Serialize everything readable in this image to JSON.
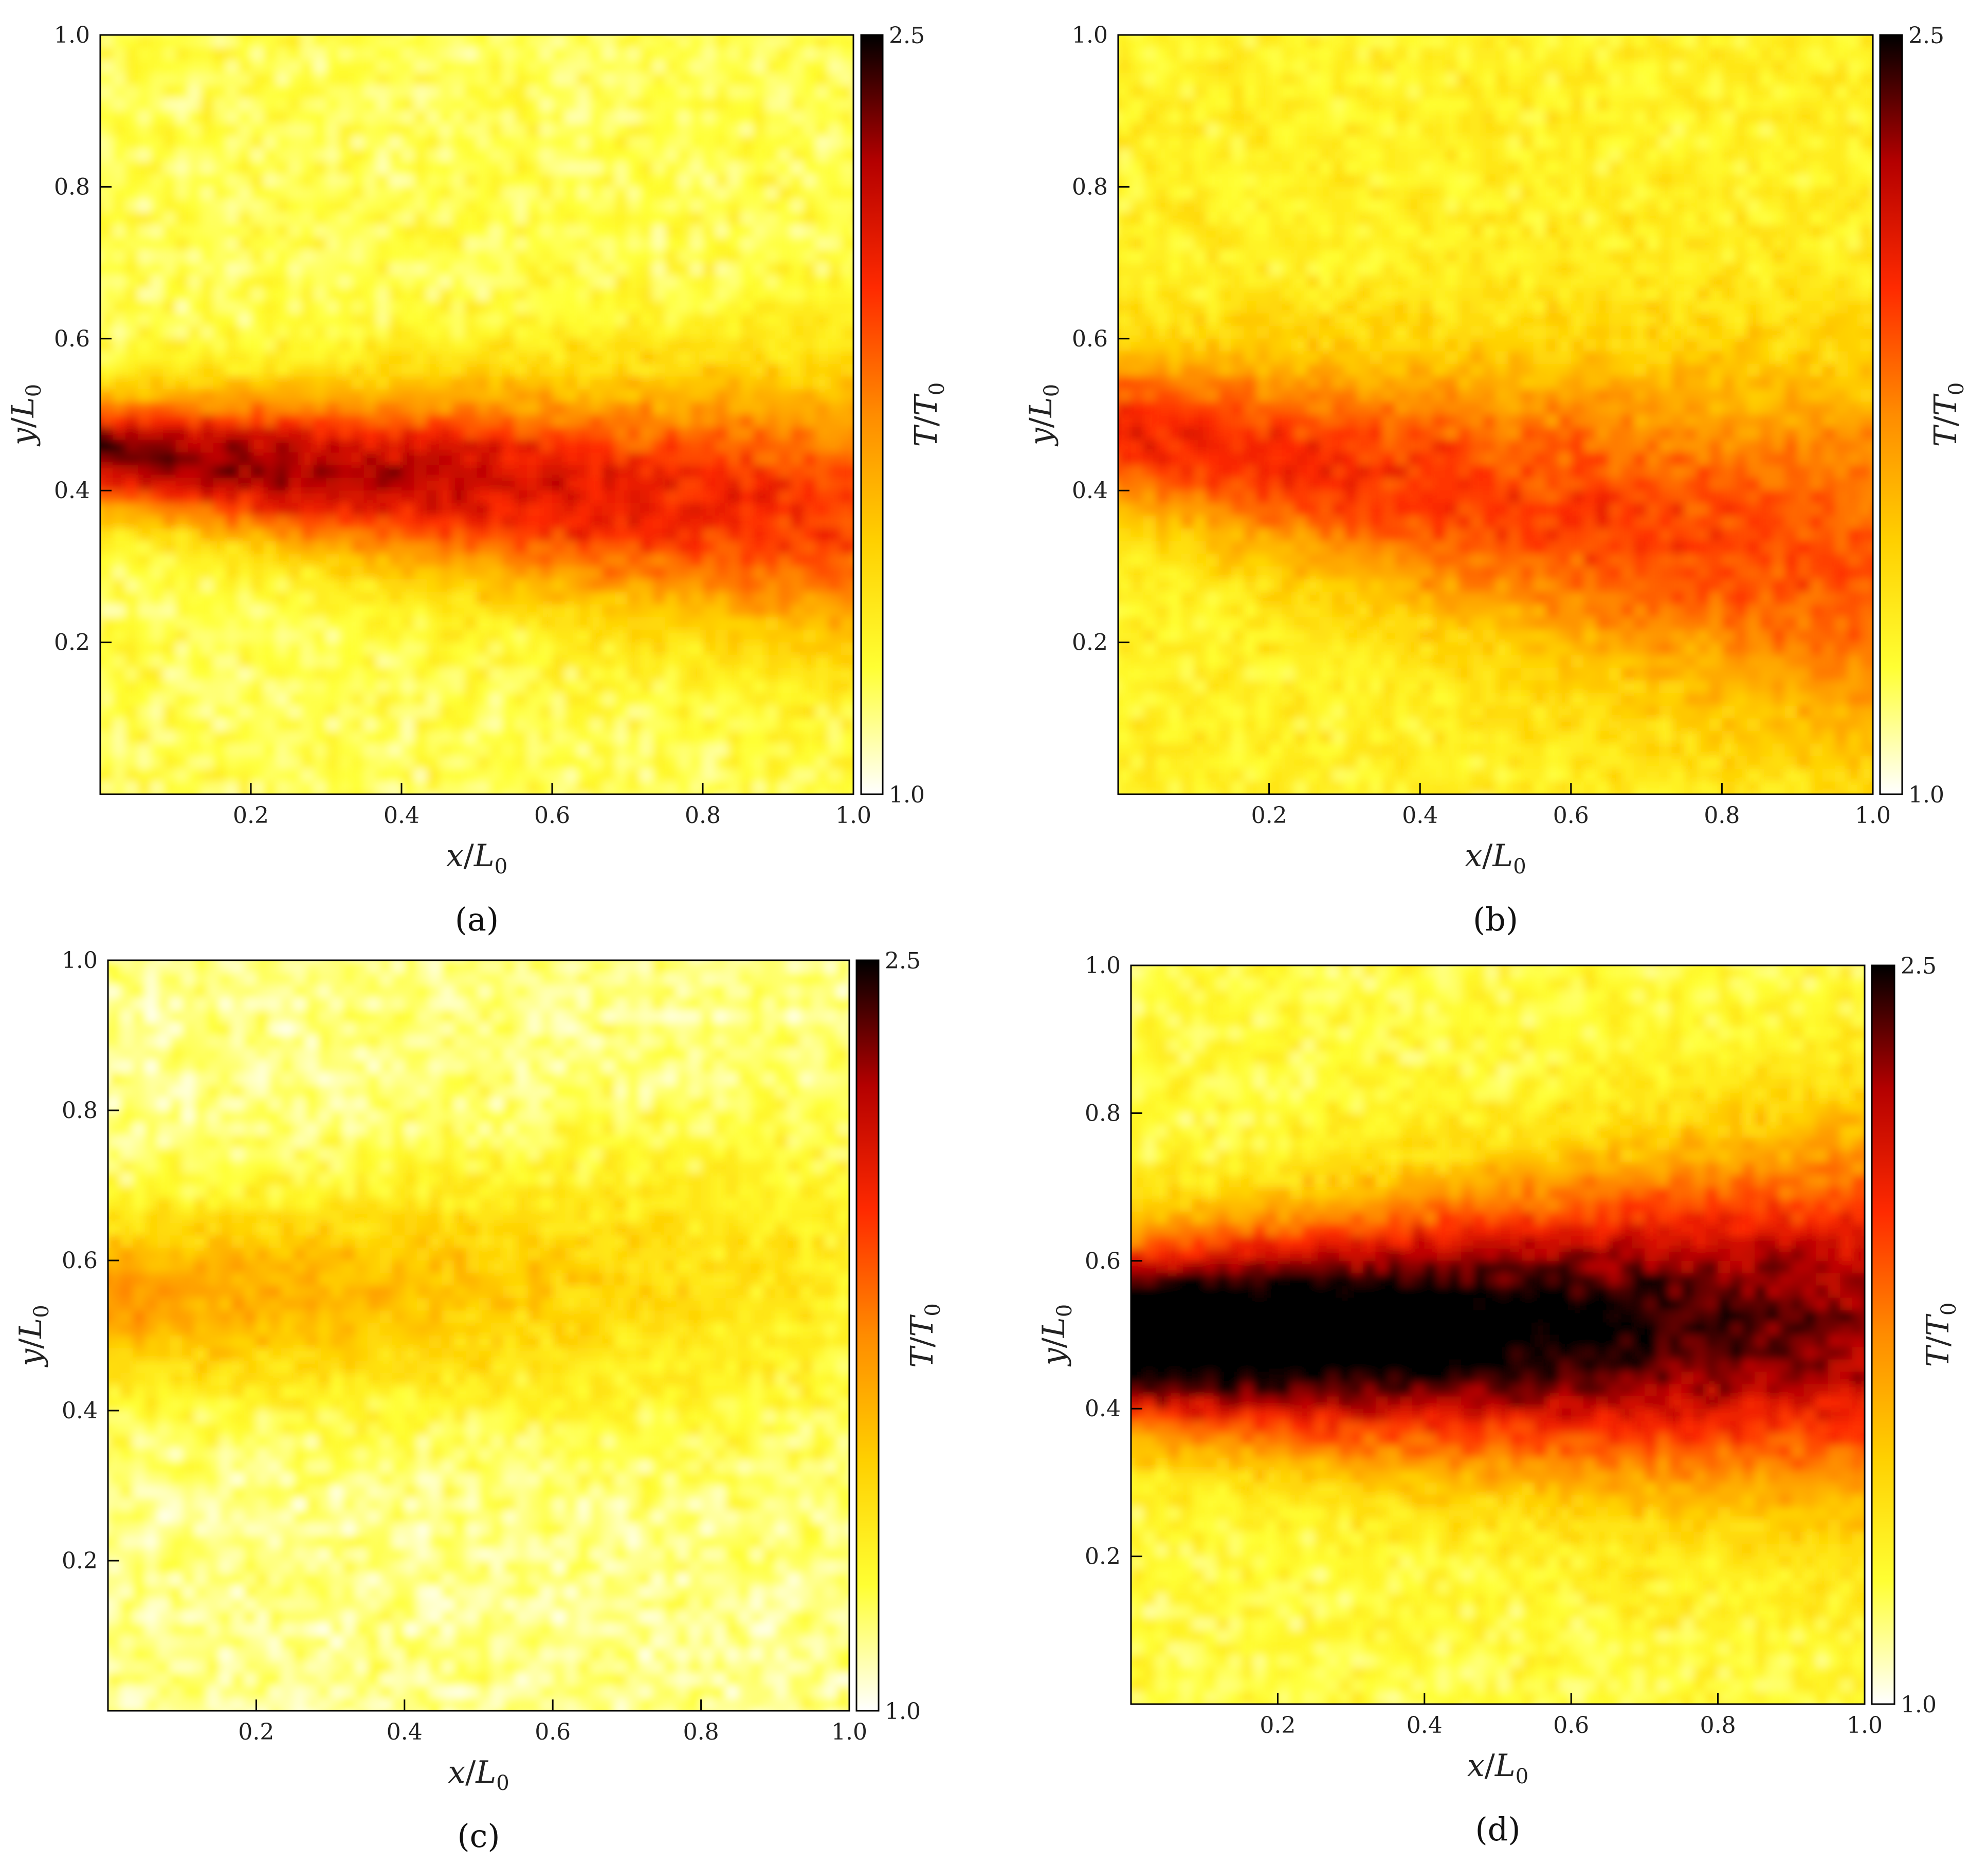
{
  "figure": {
    "colorbar_label_main": "T",
    "colorbar_label_sub": "0",
    "x_label_main": "x",
    "y_label_main": "y",
    "axis_label_unit": "L",
    "axis_label_sub": "0",
    "colormap": [
      "#ffffff",
      "#ffff33",
      "#ffd000",
      "#ff8c00",
      "#ff2a00",
      "#b40000",
      "#000000"
    ]
  },
  "chart_data": [
    {
      "type": "heatmap",
      "panel_label": "(a)",
      "x_ticks": [
        "0.2",
        "0.4",
        "0.6",
        "0.8",
        "1.0"
      ],
      "y_ticks": [
        "0.2",
        "0.4",
        "0.6",
        "0.8",
        "1.0"
      ],
      "xlim": [
        0,
        1.0
      ],
      "ylim": [
        0,
        1.0
      ],
      "colorbar": {
        "min": 1.0,
        "max": 2.5,
        "min_label": "1.0",
        "max_label": "2.5"
      },
      "field": {
        "center_start": 0.45,
        "center_end": 0.37,
        "width_start": 0.05,
        "width_end": 0.13,
        "peak_start": 2.4,
        "peak_end": 1.95,
        "background": 1.22
      }
    },
    {
      "type": "heatmap",
      "panel_label": "(b)",
      "x_ticks": [
        "0.2",
        "0.4",
        "0.6",
        "0.8",
        "1.0"
      ],
      "y_ticks": [
        "0.2",
        "0.4",
        "0.6",
        "0.8",
        "1.0"
      ],
      "xlim": [
        0,
        1.0
      ],
      "ylim": [
        0,
        1.0
      ],
      "colorbar": {
        "min": 1.0,
        "max": 2.5,
        "min_label": "1.0",
        "max_label": "2.5"
      },
      "field": {
        "center_start": 0.48,
        "center_end": 0.3,
        "width_start": 0.07,
        "width_end": 0.18,
        "peak_start": 2.05,
        "peak_end": 1.9,
        "background": 1.32
      }
    },
    {
      "type": "heatmap",
      "panel_label": "(c)",
      "x_ticks": [
        "0.2",
        "0.4",
        "0.6",
        "0.8",
        "1.0"
      ],
      "y_ticks": [
        "0.2",
        "0.4",
        "0.6",
        "0.8",
        "1.0"
      ],
      "xlim": [
        0,
        1.0
      ],
      "ylim": [
        0,
        1.0
      ],
      "colorbar": {
        "min": 1.0,
        "max": 2.5,
        "min_label": "1.0",
        "max_label": "2.5"
      },
      "field": {
        "center_start": 0.55,
        "center_end": 0.58,
        "width_start": 0.08,
        "width_end": 0.15,
        "peak_start": 1.7,
        "peak_end": 1.35,
        "background": 1.15
      }
    },
    {
      "type": "heatmap",
      "panel_label": "(d)",
      "x_ticks": [
        "0.2",
        "0.4",
        "0.6",
        "0.8",
        "1.0"
      ],
      "y_ticks": [
        "0.2",
        "0.4",
        "0.6",
        "0.8",
        "1.0"
      ],
      "xlim": [
        0,
        1.0
      ],
      "ylim": [
        0,
        1.0
      ],
      "colorbar": {
        "min": 1.0,
        "max": 2.5,
        "min_label": "1.0",
        "max_label": "2.5"
      },
      "field": {
        "center_start": 0.5,
        "center_end": 0.52,
        "width_start": 0.085,
        "width_end": 0.17,
        "peak_start": 2.9,
        "peak_end": 2.3,
        "background": 1.25
      }
    }
  ]
}
